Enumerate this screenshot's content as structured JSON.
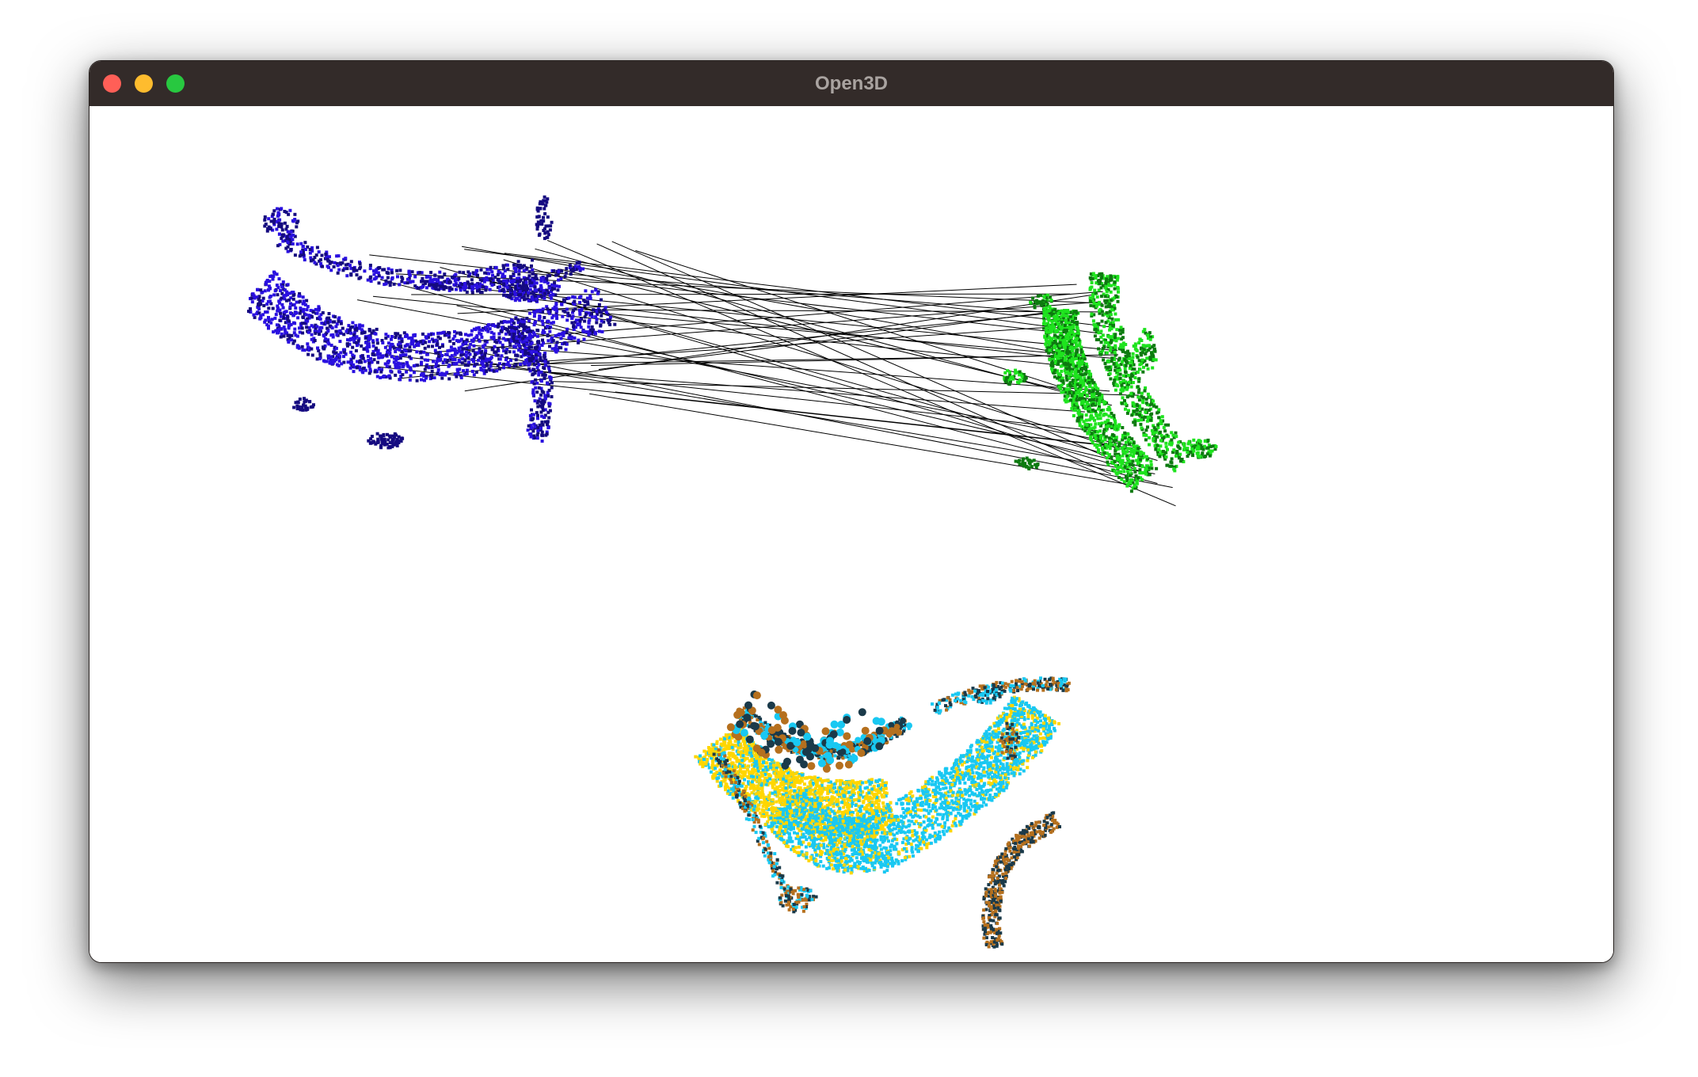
{
  "window": {
    "title": "Open3D",
    "background": "#ffffff",
    "titlebar_color": "#332b29"
  },
  "controls": {
    "close": {
      "icon": "close-icon",
      "color": "#ff5f57"
    },
    "minimize": {
      "icon": "minimize-icon",
      "color": "#febc2e"
    },
    "maximize": {
      "icon": "maximize-icon",
      "color": "#28c840"
    }
  },
  "scene": {
    "source_cloud_colors": [
      "#2a10e0",
      "#150a80"
    ],
    "target_cloud_colors": [
      "#1ee31e",
      "#0d7a10"
    ],
    "correspondence_line_color": "#000000",
    "registered_cloud_colors": [
      "#ffd600",
      "#19c8f2",
      "#1a3a4a",
      "#b5701e"
    ]
  }
}
